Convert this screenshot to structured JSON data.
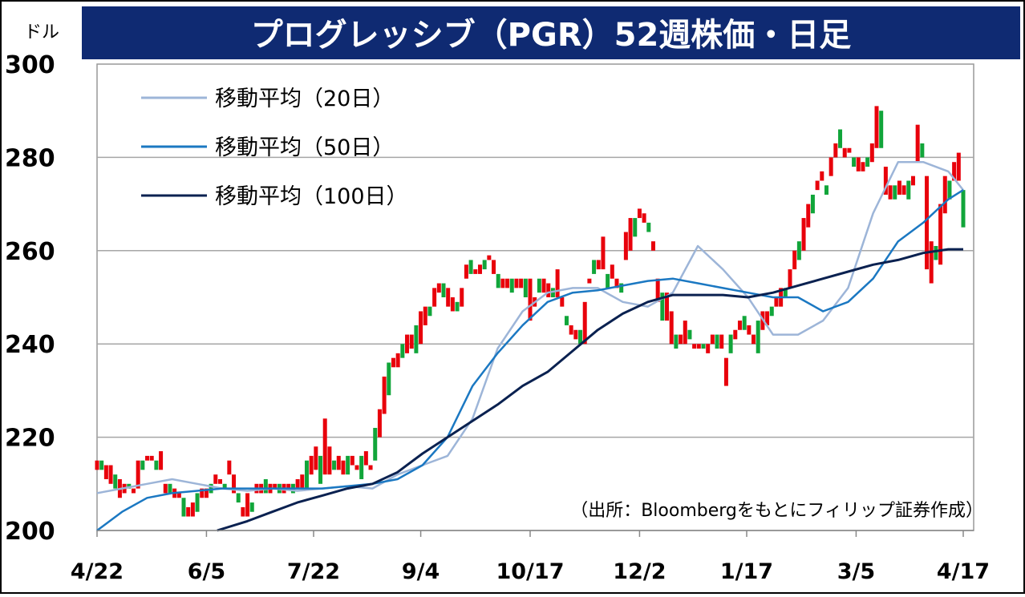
{
  "chart_data": {
    "type": "candlestick",
    "title": "プログレッシブ（PGR）52週株価・日足",
    "ylabel": "ドル",
    "ylim": [
      200,
      300
    ],
    "yticks": [
      "300",
      "280",
      "260",
      "240",
      "220",
      "200"
    ],
    "xticks": [
      "4/22",
      "6/5",
      "7/22",
      "9/4",
      "10/17",
      "12/2",
      "1/17",
      "3/5",
      "4/17"
    ],
    "grid": true,
    "legend_position": "top-left",
    "source": "（出所：Bloombergをもとにフィリップ証券作成）",
    "colors": {
      "up": "#e8000b",
      "down": "#11a53a",
      "ma20": "#9db5d8",
      "ma50": "#1b78c2",
      "ma100": "#0a2150",
      "title_bg": "#0f2a72"
    },
    "series": [
      {
        "name": "移動平均（20日）",
        "key": "ma20",
        "values": [
          [
            0,
            208
          ],
          [
            10,
            209
          ],
          [
            20,
            210
          ],
          [
            30,
            211
          ],
          [
            40,
            210
          ],
          [
            50,
            209
          ],
          [
            60,
            208.5
          ],
          [
            70,
            209
          ],
          [
            80,
            208.5
          ],
          [
            90,
            209
          ],
          [
            100,
            209.5
          ],
          [
            110,
            209
          ],
          [
            120,
            212
          ],
          [
            130,
            214
          ],
          [
            140,
            216
          ],
          [
            150,
            224
          ],
          [
            160,
            239
          ],
          [
            170,
            247
          ],
          [
            180,
            251
          ],
          [
            190,
            252
          ],
          [
            200,
            252
          ],
          [
            210,
            249
          ],
          [
            220,
            248
          ],
          [
            230,
            251
          ],
          [
            240,
            261
          ],
          [
            250,
            256
          ],
          [
            260,
            250
          ],
          [
            270,
            242
          ],
          [
            280,
            242
          ],
          [
            290,
            245
          ],
          [
            300,
            252
          ],
          [
            310,
            268
          ],
          [
            320,
            279
          ],
          [
            330,
            279
          ],
          [
            340,
            277
          ],
          [
            346,
            273
          ]
        ]
      },
      {
        "name": "移動平均（50日）",
        "key": "ma50",
        "values": [
          [
            0,
            200
          ],
          [
            10,
            204
          ],
          [
            20,
            207
          ],
          [
            30,
            208
          ],
          [
            40,
            208.5
          ],
          [
            50,
            209
          ],
          [
            60,
            209
          ],
          [
            70,
            209
          ],
          [
            80,
            209
          ],
          [
            90,
            209
          ],
          [
            100,
            209.5
          ],
          [
            110,
            210
          ],
          [
            120,
            211
          ],
          [
            130,
            214
          ],
          [
            140,
            220
          ],
          [
            150,
            231
          ],
          [
            160,
            238
          ],
          [
            170,
            244
          ],
          [
            180,
            249
          ],
          [
            190,
            251
          ],
          [
            200,
            251.5
          ],
          [
            210,
            252.5
          ],
          [
            220,
            253.5
          ],
          [
            230,
            254
          ],
          [
            240,
            253
          ],
          [
            250,
            252
          ],
          [
            260,
            251
          ],
          [
            270,
            250
          ],
          [
            280,
            250
          ],
          [
            290,
            247
          ],
          [
            300,
            249
          ],
          [
            310,
            254
          ],
          [
            320,
            262
          ],
          [
            330,
            266
          ],
          [
            340,
            271
          ],
          [
            346,
            273
          ]
        ]
      },
      {
        "name": "移動平均（100日）",
        "key": "ma100",
        "values": [
          [
            48,
            200
          ],
          [
            60,
            202
          ],
          [
            70,
            204
          ],
          [
            80,
            206
          ],
          [
            90,
            207.5
          ],
          [
            100,
            209
          ],
          [
            110,
            210
          ],
          [
            120,
            212.5
          ],
          [
            130,
            216.5
          ],
          [
            140,
            220
          ],
          [
            150,
            223.5
          ],
          [
            160,
            227
          ],
          [
            170,
            231
          ],
          [
            180,
            234
          ],
          [
            190,
            238.5
          ],
          [
            200,
            243
          ],
          [
            210,
            246.5
          ],
          [
            220,
            249
          ],
          [
            230,
            250.5
          ],
          [
            240,
            250.5
          ],
          [
            250,
            250.5
          ],
          [
            260,
            250
          ],
          [
            270,
            251
          ],
          [
            280,
            252.5
          ],
          [
            290,
            254
          ],
          [
            300,
            255.5
          ],
          [
            310,
            257
          ],
          [
            320,
            258
          ],
          [
            330,
            259.5
          ],
          [
            340,
            260.3
          ],
          [
            346,
            260.3
          ]
        ]
      }
    ],
    "candles": [
      [
        0,
        213,
        215
      ],
      [
        2,
        213,
        215
      ],
      [
        4,
        211,
        214
      ],
      [
        6,
        210,
        214
      ],
      [
        8,
        209,
        212
      ],
      [
        10,
        207,
        211
      ],
      [
        12,
        208,
        210
      ],
      [
        14,
        209,
        210
      ],
      [
        16,
        208,
        209
      ],
      [
        18,
        209,
        215
      ],
      [
        20,
        213,
        215
      ],
      [
        22,
        215,
        216
      ],
      [
        24,
        215,
        216
      ],
      [
        26,
        213,
        215
      ],
      [
        28,
        213,
        217
      ],
      [
        30,
        208,
        210
      ],
      [
        32,
        208,
        210
      ],
      [
        34,
        207,
        209
      ],
      [
        36,
        207,
        208
      ],
      [
        38,
        203,
        207
      ],
      [
        40,
        203,
        205
      ],
      [
        42,
        203,
        206
      ],
      [
        44,
        204,
        208
      ],
      [
        46,
        207,
        209
      ],
      [
        48,
        207,
        209
      ],
      [
        50,
        208,
        210
      ],
      [
        52,
        210,
        212
      ],
      [
        54,
        210,
        211
      ],
      [
        56,
        209,
        210
      ],
      [
        58,
        212,
        215
      ],
      [
        60,
        208,
        212
      ],
      [
        62,
        206,
        208
      ],
      [
        64,
        203,
        205
      ],
      [
        66,
        203,
        208
      ],
      [
        68,
        204,
        206
      ],
      [
        70,
        208,
        210
      ],
      [
        72,
        208,
        210
      ],
      [
        74,
        208,
        211
      ],
      [
        76,
        208,
        210
      ],
      [
        78,
        209,
        210
      ],
      [
        80,
        208,
        210
      ],
      [
        82,
        208,
        210
      ],
      [
        84,
        209,
        210
      ],
      [
        86,
        208,
        210
      ],
      [
        88,
        209,
        211
      ],
      [
        90,
        209,
        212
      ],
      [
        92,
        209,
        215
      ],
      [
        94,
        212,
        216
      ],
      [
        96,
        213,
        218
      ],
      [
        98,
        210,
        216
      ],
      [
        100,
        212,
        224
      ],
      [
        102,
        212,
        218
      ],
      [
        104,
        213,
        215
      ],
      [
        106,
        213,
        216
      ],
      [
        108,
        212,
        215
      ],
      [
        110,
        212,
        216
      ],
      [
        112,
        214,
        216
      ],
      [
        114,
        213,
        214
      ],
      [
        116,
        211,
        216
      ],
      [
        118,
        214,
        217
      ],
      [
        120,
        213,
        214
      ],
      [
        122,
        215,
        222
      ],
      [
        124,
        220,
        226
      ],
      [
        126,
        225,
        233
      ],
      [
        128,
        229,
        236
      ],
      [
        130,
        235,
        237
      ],
      [
        132,
        235,
        238
      ],
      [
        134,
        237,
        240
      ],
      [
        136,
        238,
        242
      ],
      [
        138,
        239,
        242
      ],
      [
        140,
        238,
        244
      ],
      [
        142,
        240,
        247
      ],
      [
        144,
        244,
        248
      ],
      [
        146,
        246,
        248
      ],
      [
        148,
        248,
        252
      ],
      [
        150,
        251,
        253
      ],
      [
        152,
        250,
        253
      ],
      [
        154,
        248,
        252
      ],
      [
        156,
        247,
        250
      ],
      [
        158,
        247,
        249
      ],
      [
        160,
        248,
        252
      ],
      [
        162,
        254,
        257
      ],
      [
        164,
        255,
        258
      ],
      [
        166,
        255,
        256
      ],
      [
        168,
        255,
        257
      ],
      [
        170,
        256,
        258
      ],
      [
        172,
        258,
        259
      ],
      [
        174,
        255,
        258
      ],
      [
        176,
        252,
        255
      ],
      [
        178,
        252,
        254
      ],
      [
        180,
        252,
        254
      ],
      [
        182,
        251,
        254
      ],
      [
        184,
        252,
        254
      ],
      [
        186,
        252,
        254
      ],
      [
        188,
        250,
        254
      ],
      [
        190,
        245,
        254
      ],
      [
        192,
        248,
        250
      ],
      [
        194,
        251,
        254
      ],
      [
        196,
        251,
        254
      ],
      [
        198,
        250,
        253
      ],
      [
        200,
        250,
        252
      ],
      [
        202,
        250,
        256
      ],
      [
        204,
        248,
        250
      ],
      [
        206,
        244,
        246
      ],
      [
        208,
        242,
        244
      ],
      [
        210,
        241,
        243
      ],
      [
        212,
        240,
        243
      ],
      [
        214,
        240,
        249
      ],
      [
        216,
        253,
        254
      ],
      [
        218,
        255,
        258
      ],
      [
        220,
        256,
        258
      ],
      [
        222,
        256,
        263
      ],
      [
        224,
        252,
        255
      ],
      [
        226,
        254,
        257
      ],
      [
        228,
        252,
        254
      ],
      [
        230,
        251,
        253
      ],
      [
        232,
        258,
        264
      ],
      [
        234,
        260,
        267
      ],
      [
        236,
        263,
        267
      ],
      [
        238,
        267,
        269
      ],
      [
        240,
        266,
        268
      ],
      [
        242,
        264,
        266
      ],
      [
        244,
        260,
        262
      ],
      [
        246,
        249,
        254
      ],
      [
        248,
        245,
        251
      ],
      [
        250,
        245,
        251
      ],
      [
        252,
        240,
        247
      ],
      [
        254,
        239,
        242
      ],
      [
        256,
        240,
        242
      ],
      [
        258,
        240,
        245
      ],
      [
        260,
        241,
        243
      ],
      [
        262,
        239,
        240
      ],
      [
        264,
        239,
        240
      ],
      [
        266,
        239,
        240
      ],
      [
        268,
        238,
        240
      ],
      [
        270,
        240,
        242
      ],
      [
        272,
        239,
        242
      ],
      [
        274,
        239,
        242
      ],
      [
        276,
        231,
        237
      ],
      [
        278,
        238,
        242
      ],
      [
        280,
        241,
        243
      ],
      [
        282,
        243,
        245
      ],
      [
        284,
        243,
        246
      ],
      [
        286,
        242,
        244
      ],
      [
        288,
        240,
        242
      ],
      [
        290,
        238,
        245
      ],
      [
        292,
        243,
        247
      ],
      [
        294,
        244,
        247
      ],
      [
        296,
        246,
        248
      ],
      [
        298,
        248,
        250
      ],
      [
        300,
        248,
        252
      ],
      [
        302,
        250,
        252
      ],
      [
        304,
        252,
        256
      ],
      [
        306,
        256,
        260
      ],
      [
        308,
        258,
        262
      ],
      [
        310,
        260,
        267
      ],
      [
        312,
        265,
        270
      ],
      [
        314,
        268,
        272
      ],
      [
        316,
        273,
        275
      ],
      [
        318,
        275,
        277
      ],
      [
        320,
        272,
        274
      ],
      [
        322,
        276,
        280
      ],
      [
        324,
        280,
        283
      ],
      [
        326,
        282,
        286
      ],
      [
        328,
        280,
        282
      ],
      [
        330,
        281,
        282
      ],
      [
        332,
        278,
        280
      ],
      [
        334,
        277,
        280
      ],
      [
        336,
        277,
        279
      ],
      [
        338,
        278,
        280
      ],
      [
        340,
        279,
        283
      ],
      [
        342,
        282,
        291
      ],
      [
        344,
        282,
        290
      ],
      [
        346,
        272,
        278
      ],
      [
        348,
        271,
        274
      ],
      [
        350,
        271,
        274
      ],
      [
        352,
        272,
        275
      ],
      [
        354,
        272,
        274
      ],
      [
        356,
        271,
        275
      ],
      [
        358,
        274,
        276
      ],
      [
        360,
        279,
        287
      ],
      [
        362,
        280,
        283
      ],
      [
        364,
        256,
        276
      ],
      [
        366,
        253,
        262
      ],
      [
        368,
        258,
        261
      ],
      [
        370,
        257,
        270
      ],
      [
        372,
        268,
        276
      ],
      [
        374,
        271,
        275
      ],
      [
        376,
        275,
        279
      ],
      [
        378,
        275,
        281
      ],
      [
        380,
        265,
        273
      ]
    ]
  }
}
